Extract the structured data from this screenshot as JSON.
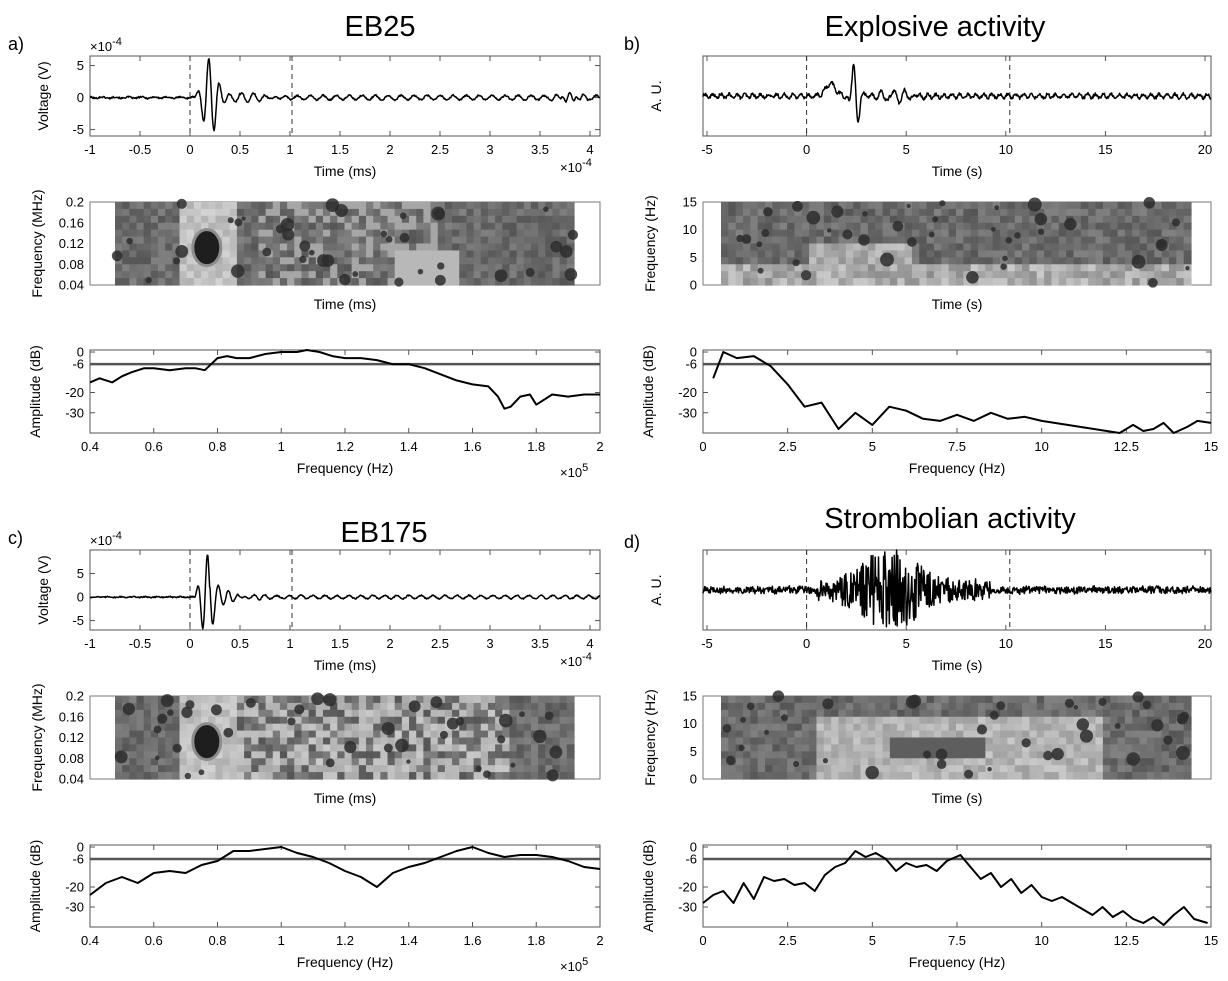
{
  "panels": [
    {
      "letter": "a)",
      "title": "EB25",
      "kind": "ae",
      "wave": {
        "ylabel": "Voltage (V)",
        "xlabel": "Time (ms)",
        "exponent_y": "×10^-4",
        "exponent_x": "×10^-4",
        "xlim": [
          -1,
          4.1
        ],
        "ylim": [
          -6,
          6.5
        ],
        "xticks": [
          -1,
          -0.5,
          0,
          0.5,
          1,
          1.5,
          2,
          2.5,
          3,
          3.5,
          4
        ],
        "xticklabels": [
          "-1",
          "-0.5",
          "0",
          "0.5",
          "1",
          "1.5",
          "2",
          "2.5",
          "3",
          "3.5",
          "4"
        ],
        "yticks": [
          -5,
          0,
          5
        ],
        "yticklabels": [
          "-5",
          "0",
          "5"
        ],
        "markers": [
          0,
          1.02
        ]
      },
      "spec": {
        "ylabel": "Frequency (MHz)",
        "xlabel": "Time (ms)",
        "ylim": [
          0.04,
          0.2
        ],
        "yticks": [
          0.04,
          0.08,
          0.12,
          0.16,
          0.2
        ],
        "yticklabels": [
          "0.04",
          "0.08",
          "0.12",
          "0.16",
          "0.2"
        ]
      },
      "amp": {
        "ylabel": "Amplitude (dB)",
        "xlabel": "Frequency (Hz)",
        "exponent_x": "×10^5",
        "xlim": [
          0.4,
          2
        ],
        "ylim": [
          -40,
          1
        ],
        "xticks": [
          0.4,
          0.6,
          0.8,
          1,
          1.2,
          1.4,
          1.6,
          1.8,
          2
        ],
        "xticklabels": [
          "0.4",
          "0.6",
          "0.8",
          "1",
          "1.2",
          "1.4",
          "1.6",
          "1.8",
          "2"
        ],
        "yticks": [
          0,
          -6,
          -20,
          -30
        ],
        "yticklabels": [
          "0",
          "-6",
          "-20",
          "-30"
        ],
        "ref_line": -6
      }
    },
    {
      "letter": "b)",
      "title": "Explosive activity",
      "kind": "seis",
      "wave": {
        "ylabel": "A. U.",
        "xlabel": "Time (s)",
        "xlim": [
          -5.2,
          20.3
        ],
        "ylim": [
          -1,
          1
        ],
        "xticks": [
          -5,
          0,
          5,
          10,
          15,
          20
        ],
        "xticklabels": [
          "-5",
          "0",
          "5",
          "10",
          "15",
          "20"
        ],
        "markers": [
          0,
          10.2
        ]
      },
      "spec": {
        "ylabel": "Frequency (Hz)",
        "xlabel": "Time (s)",
        "ylim": [
          0,
          15
        ],
        "yticks": [
          0,
          5,
          10,
          15
        ],
        "yticklabels": [
          "0",
          "5",
          "10",
          "15"
        ]
      },
      "amp": {
        "ylabel": "Amplitude (dB)",
        "xlabel": "Frequency (Hz)",
        "xlim": [
          0,
          15
        ],
        "ylim": [
          -40,
          1
        ],
        "xticks": [
          0,
          2.5,
          5,
          7.5,
          10,
          12.5,
          15
        ],
        "xticklabels": [
          "0",
          "2.5",
          "5",
          "7.5",
          "10",
          "12.5",
          "15"
        ],
        "yticks": [
          0,
          -6,
          -20,
          -30
        ],
        "yticklabels": [
          "0",
          "-6",
          "-20",
          "-30"
        ],
        "ref_line": -6
      }
    },
    {
      "letter": "c)",
      "title": "EB175",
      "kind": "ae",
      "wave": {
        "ylabel": "Voltage (V)",
        "xlabel": "Time (ms)",
        "exponent_y": "×10^-4",
        "exponent_x": "×10^-4",
        "xlim": [
          -1,
          4.1
        ],
        "ylim": [
          -7,
          10
        ],
        "xticks": [
          -1,
          -0.5,
          0,
          0.5,
          1,
          1.5,
          2,
          2.5,
          3,
          3.5,
          4
        ],
        "xticklabels": [
          "-1",
          "-0.5",
          "0",
          "0.5",
          "1",
          "1.5",
          "2",
          "2.5",
          "3",
          "3.5",
          "4"
        ],
        "yticks": [
          -5,
          0,
          5
        ],
        "yticklabels": [
          "-5",
          "0",
          "5"
        ],
        "markers": [
          0,
          1.02
        ]
      },
      "spec": {
        "ylabel": "Frequency (MHz)",
        "xlabel": "Time (ms)",
        "ylim": [
          0.04,
          0.2
        ],
        "yticks": [
          0.04,
          0.08,
          0.12,
          0.16,
          0.2
        ],
        "yticklabels": [
          "0.04",
          "0.08",
          "0.12",
          "0.16",
          "0.2"
        ]
      },
      "amp": {
        "ylabel": "Amplitude (dB)",
        "xlabel": "Frequency (Hz)",
        "exponent_x": "×10^5",
        "xlim": [
          0.4,
          2
        ],
        "ylim": [
          -40,
          1
        ],
        "xticks": [
          0.4,
          0.6,
          0.8,
          1,
          1.2,
          1.4,
          1.6,
          1.8,
          2
        ],
        "xticklabels": [
          "0.4",
          "0.6",
          "0.8",
          "1",
          "1.2",
          "1.4",
          "1.6",
          "1.8",
          "2"
        ],
        "yticks": [
          0,
          -6,
          -20,
          -30
        ],
        "yticklabels": [
          "0",
          "-6",
          "-20",
          "-30"
        ],
        "ref_line": -6
      }
    },
    {
      "letter": "d)",
      "title": "Strombolian activity",
      "kind": "seis",
      "wave": {
        "ylabel": "A. U.",
        "xlabel": "Time (s)",
        "xlim": [
          -5.2,
          20.3
        ],
        "ylim": [
          -1,
          1
        ],
        "xticks": [
          -5,
          0,
          5,
          10,
          15,
          20
        ],
        "xticklabels": [
          "-5",
          "0",
          "5",
          "10",
          "15",
          "20"
        ],
        "markers": [
          0,
          10.2
        ]
      },
      "spec": {
        "ylabel": "Frequency (Hz)",
        "xlabel": "Time (s)",
        "ylim": [
          0,
          15
        ],
        "yticks": [
          0,
          5,
          10,
          15
        ],
        "yticklabels": [
          "0",
          "5",
          "10",
          "15"
        ]
      },
      "amp": {
        "ylabel": "Amplitude (dB)",
        "xlabel": "Frequency (Hz)",
        "xlim": [
          0,
          15
        ],
        "ylim": [
          -40,
          1
        ],
        "xticks": [
          0,
          2.5,
          5,
          7.5,
          10,
          12.5,
          15
        ],
        "xticklabels": [
          "0",
          "2.5",
          "5",
          "7.5",
          "10",
          "12.5",
          "15"
        ],
        "yticks": [
          0,
          -6,
          -20,
          -30
        ],
        "yticklabels": [
          "0",
          "-6",
          "-20",
          "-30"
        ],
        "ref_line": -6
      }
    }
  ],
  "chart_data": [
    {
      "type": "line",
      "panel": "a) EB25 amplitude spectrum",
      "xlabel": "Frequency (Hz)",
      "ylabel": "Amplitude (dB)",
      "xlim": [
        0.4,
        2
      ],
      "ylim": [
        -40,
        1
      ],
      "x": [
        0.4,
        0.43,
        0.47,
        0.5,
        0.53,
        0.57,
        0.6,
        0.65,
        0.7,
        0.73,
        0.76,
        0.78,
        0.8,
        0.83,
        0.86,
        0.9,
        0.95,
        1.0,
        1.05,
        1.08,
        1.12,
        1.16,
        1.2,
        1.25,
        1.3,
        1.35,
        1.4,
        1.45,
        1.5,
        1.55,
        1.6,
        1.65,
        1.68,
        1.7,
        1.72,
        1.75,
        1.78,
        1.8,
        1.85,
        1.9,
        1.95,
        2.0
      ],
      "series": [
        {
          "values": [
            -15,
            -13,
            -15,
            -12,
            -10,
            -8,
            -8,
            -9,
            -8,
            -8,
            -9,
            -6,
            -3,
            -2,
            -3,
            -3,
            -1,
            0,
            0,
            1,
            0,
            -2,
            -3,
            -3,
            -4,
            -6,
            -6,
            -8,
            -11,
            -14,
            -16,
            -17,
            -22,
            -28,
            -27,
            -22,
            -21,
            -26,
            -21,
            -22,
            -21,
            -21
          ]
        }
      ],
      "ref_line": -6
    },
    {
      "type": "line",
      "panel": "b) Explosive activity amplitude spectrum",
      "xlabel": "Frequency (Hz)",
      "ylabel": "Amplitude (dB)",
      "xlim": [
        0,
        15
      ],
      "ylim": [
        -40,
        1
      ],
      "x": [
        0.3,
        0.6,
        1.0,
        1.5,
        2.0,
        2.5,
        3.0,
        3.5,
        4.0,
        4.5,
        5.0,
        5.5,
        6.0,
        6.5,
        7.0,
        7.5,
        8.0,
        8.5,
        9.0,
        9.5,
        10.0,
        12.3,
        12.7,
        13.0,
        13.3,
        13.6,
        13.9,
        14.3,
        14.6,
        15.0
      ],
      "series": [
        {
          "values": [
            -13,
            0,
            -3,
            -2,
            -7,
            -16,
            -27,
            -25,
            -38,
            -30,
            -36,
            -27,
            -29,
            -33,
            -34,
            -31,
            -34,
            -30,
            -33,
            -32,
            -34,
            -40,
            -36,
            -39,
            -38,
            -35,
            -40,
            -37,
            -34,
            -35
          ]
        }
      ],
      "ref_line": -6
    },
    {
      "type": "line",
      "panel": "c) EB175 amplitude spectrum",
      "xlabel": "Frequency (Hz)",
      "ylabel": "Amplitude (dB)",
      "xlim": [
        0.4,
        2
      ],
      "ylim": [
        -40,
        1
      ],
      "x": [
        0.4,
        0.45,
        0.5,
        0.55,
        0.6,
        0.65,
        0.7,
        0.75,
        0.8,
        0.85,
        0.9,
        0.95,
        1.0,
        1.05,
        1.1,
        1.15,
        1.2,
        1.25,
        1.3,
        1.35,
        1.4,
        1.45,
        1.5,
        1.55,
        1.6,
        1.65,
        1.7,
        1.75,
        1.8,
        1.85,
        1.9,
        1.95,
        2.0
      ],
      "series": [
        {
          "values": [
            -24,
            -18,
            -15,
            -18,
            -13,
            -12,
            -13,
            -9,
            -7,
            -2,
            -2,
            -1,
            0,
            -3,
            -5,
            -8,
            -12,
            -15,
            -20,
            -13,
            -10,
            -8,
            -5,
            -2,
            0,
            -3,
            -5,
            -4,
            -4,
            -5,
            -7,
            -10,
            -11
          ]
        }
      ],
      "ref_line": -6
    },
    {
      "type": "line",
      "panel": "d) Strombolian activity amplitude spectrum",
      "xlabel": "Frequency (Hz)",
      "ylabel": "Amplitude (dB)",
      "xlim": [
        0,
        15
      ],
      "ylim": [
        -40,
        1
      ],
      "x": [
        0,
        0.3,
        0.6,
        0.9,
        1.2,
        1.5,
        1.8,
        2.1,
        2.4,
        2.7,
        3.0,
        3.3,
        3.6,
        3.9,
        4.2,
        4.5,
        4.8,
        5.1,
        5.4,
        5.7,
        6.0,
        6.3,
        6.6,
        6.9,
        7.2,
        7.6,
        7.9,
        8.2,
        8.5,
        8.8,
        9.1,
        9.4,
        9.7,
        10.0,
        10.3,
        10.6,
        10.9,
        11.2,
        11.5,
        11.8,
        12.1,
        12.4,
        12.7,
        13.0,
        13.3,
        13.6,
        13.9,
        14.2,
        14.5,
        14.9
      ],
      "series": [
        {
          "values": [
            -28,
            -24,
            -22,
            -28,
            -18,
            -26,
            -15,
            -17,
            -16,
            -19,
            -18,
            -22,
            -14,
            -10,
            -8,
            -2,
            -5,
            -3,
            -6,
            -12,
            -8,
            -10,
            -9,
            -12,
            -7,
            -4,
            -10,
            -16,
            -13,
            -20,
            -16,
            -23,
            -19,
            -25,
            -27,
            -25,
            -28,
            -31,
            -34,
            -30,
            -35,
            -32,
            -36,
            -38,
            -35,
            -39,
            -34,
            -30,
            -36,
            -38
          ]
        }
      ],
      "ref_line": -6
    }
  ]
}
